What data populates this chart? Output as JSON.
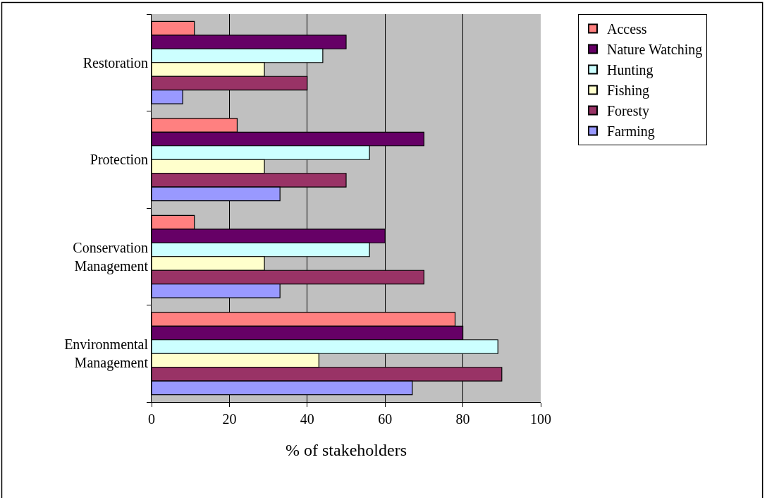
{
  "chart_data": {
    "type": "bar",
    "orientation": "horizontal",
    "xlabel": "% of stakeholders",
    "categories": [
      "Restoration",
      "Protection",
      "Conservation Management",
      "Environmental Management"
    ],
    "series": [
      {
        "name": "Access",
        "color": "#ff8080",
        "values": [
          11,
          22,
          11,
          78
        ]
      },
      {
        "name": "Nature Watching",
        "color": "#660066",
        "values": [
          50,
          70,
          60,
          80
        ]
      },
      {
        "name": "Hunting",
        "color": "#ccffff",
        "values": [
          44,
          56,
          56,
          89
        ]
      },
      {
        "name": "Fishing",
        "color": "#ffffcc",
        "values": [
          29,
          29,
          29,
          43
        ]
      },
      {
        "name": "Foresty",
        "color": "#993366",
        "values": [
          40,
          50,
          70,
          90
        ]
      },
      {
        "name": "Farming",
        "color": "#9999ff",
        "values": [
          8,
          33,
          33,
          67
        ]
      }
    ],
    "xlim": [
      0,
      100
    ],
    "xticks": [
      0,
      20,
      40,
      60,
      80,
      100
    ],
    "grid": "x",
    "legend": "right"
  }
}
